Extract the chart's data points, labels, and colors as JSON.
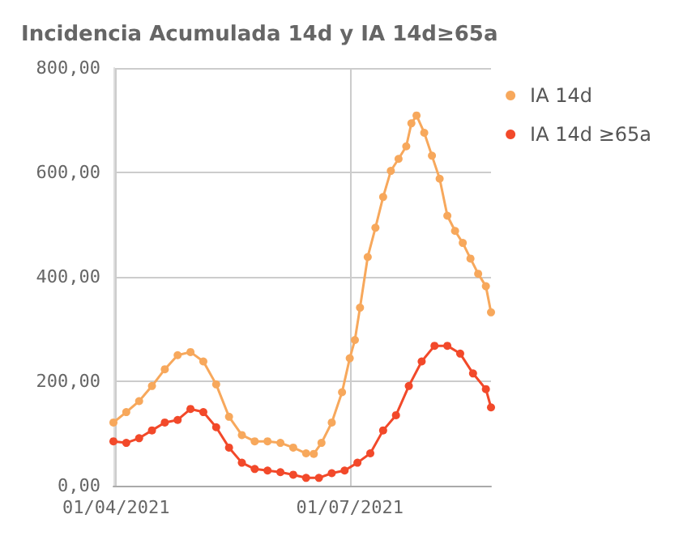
{
  "chart_data": {
    "type": "line",
    "title": "Incidencia Acumulada 14d y IA 14d≥65a",
    "xlim": [
      "2021-03-31",
      "2021-08-25"
    ],
    "xticks": [
      {
        "value": "2021-04-01",
        "label": "01/04/2021"
      },
      {
        "value": "2021-07-01",
        "label": "01/07/2021"
      }
    ],
    "ylim": [
      0,
      800
    ],
    "yticks": [
      {
        "value": 0,
        "label": "0,00"
      },
      {
        "value": 200,
        "label": "200,00"
      },
      {
        "value": 400,
        "label": "400,00"
      },
      {
        "value": 600,
        "label": "600,00"
      },
      {
        "value": 800,
        "label": "800,00"
      }
    ],
    "grid": true,
    "legend": "top right",
    "marker": "circle",
    "line_style": "solid",
    "series": [
      {
        "name": "IA 14d",
        "color": "#f7a85c",
        "x": [
          "2021-03-31",
          "2021-04-05",
          "2021-04-10",
          "2021-04-15",
          "2021-04-20",
          "2021-04-25",
          "2021-04-30",
          "2021-05-05",
          "2021-05-10",
          "2021-05-15",
          "2021-05-20",
          "2021-05-25",
          "2021-05-30",
          "2021-06-04",
          "2021-06-09",
          "2021-06-14",
          "2021-06-17",
          "2021-06-20",
          "2021-06-24",
          "2021-06-28",
          "2021-07-01",
          "2021-07-03",
          "2021-07-05",
          "2021-07-08",
          "2021-07-11",
          "2021-07-14",
          "2021-07-17",
          "2021-07-20",
          "2021-07-23",
          "2021-07-25",
          "2021-07-27",
          "2021-07-30",
          "2021-08-02",
          "2021-08-05",
          "2021-08-08",
          "2021-08-11",
          "2021-08-14",
          "2021-08-17",
          "2021-08-20",
          "2021-08-23",
          "2021-08-25"
        ],
        "values": [
          121,
          141,
          162,
          191,
          223,
          250,
          256,
          238,
          194,
          132,
          97,
          85,
          85,
          82,
          73,
          62,
          61,
          82,
          121,
          179,
          244,
          279,
          341,
          438,
          494,
          553,
          603,
          626,
          650,
          694,
          709,
          676,
          632,
          588,
          517,
          488,
          465,
          435,
          406,
          382,
          332
        ]
      },
      {
        "name": "IA 14d ≥65a",
        "color": "#f2492a",
        "x": [
          "2021-03-31",
          "2021-04-05",
          "2021-04-10",
          "2021-04-15",
          "2021-04-20",
          "2021-04-25",
          "2021-04-30",
          "2021-05-05",
          "2021-05-10",
          "2021-05-15",
          "2021-05-20",
          "2021-05-25",
          "2021-05-30",
          "2021-06-04",
          "2021-06-09",
          "2021-06-14",
          "2021-06-19",
          "2021-06-24",
          "2021-06-29",
          "2021-07-04",
          "2021-07-09",
          "2021-07-14",
          "2021-07-19",
          "2021-07-24",
          "2021-07-29",
          "2021-08-03",
          "2021-08-08",
          "2021-08-13",
          "2021-08-18",
          "2021-08-23",
          "2021-08-25"
        ],
        "values": [
          85,
          82,
          91,
          106,
          121,
          126,
          147,
          141,
          112,
          73,
          44,
          32,
          29,
          26,
          21,
          15,
          15,
          24,
          29,
          44,
          62,
          106,
          135,
          191,
          238,
          268,
          268,
          253,
          215,
          185,
          150
        ]
      }
    ]
  }
}
